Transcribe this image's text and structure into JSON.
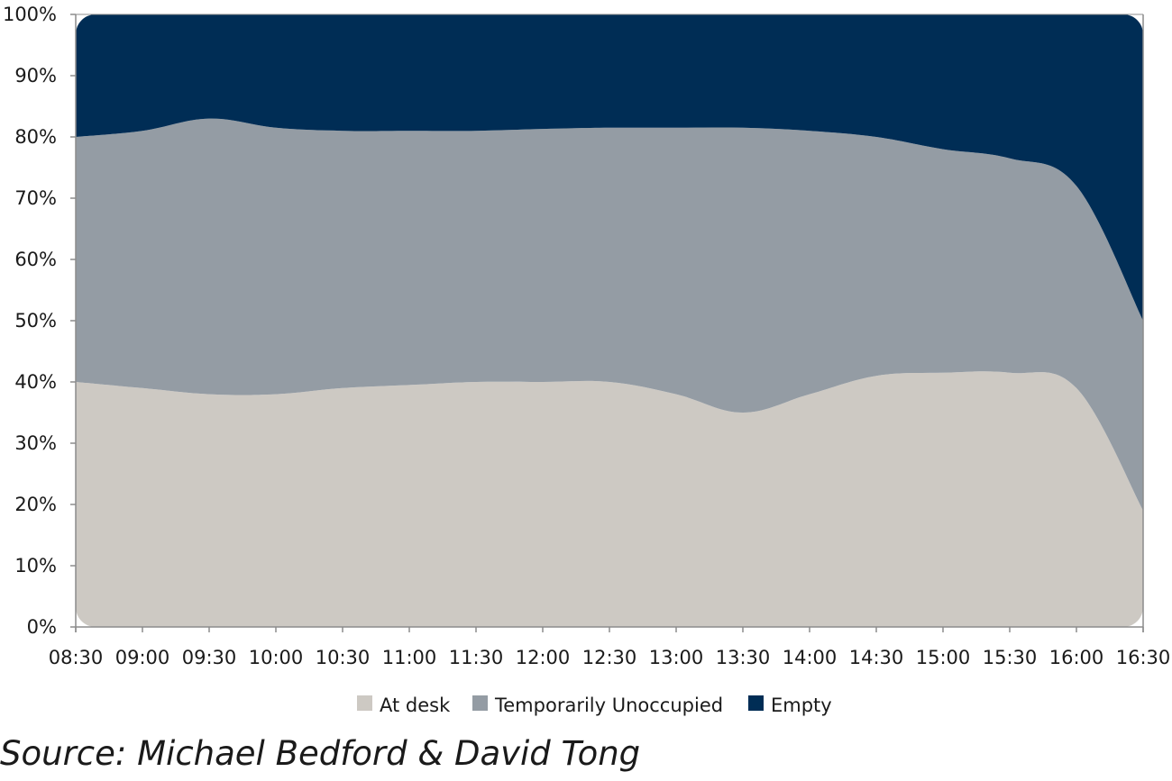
{
  "chart_data": {
    "type": "area",
    "stacked": true,
    "categories": [
      "08:30",
      "09:00",
      "09:30",
      "10:00",
      "10:30",
      "11:00",
      "11:30",
      "12:00",
      "12:30",
      "13:00",
      "13:30",
      "14:00",
      "14:30",
      "15:00",
      "15:30",
      "16:00",
      "16:30"
    ],
    "ylim": [
      0,
      100
    ],
    "yticks": [
      "0%",
      "10%",
      "20%",
      "30%",
      "40%",
      "50%",
      "60%",
      "70%",
      "80%",
      "90%",
      "100%"
    ],
    "grid": false,
    "legend_position": "bottom",
    "series": [
      {
        "name": "At desk",
        "color": "#cdc9c3",
        "values": [
          40,
          39,
          38,
          38,
          39,
          39.5,
          40,
          40,
          40,
          38,
          35,
          38,
          41,
          41.5,
          41.5,
          39,
          19
        ]
      },
      {
        "name": "Temporarily Unoccupied",
        "color": "#949ca4",
        "values": [
          40,
          42,
          45,
          43.5,
          42,
          41.5,
          41,
          41.3,
          41.5,
          43.5,
          46.5,
          43,
          39,
          36.5,
          35,
          33,
          31
        ]
      },
      {
        "name": "Empty",
        "color": "#002d55",
        "values": [
          20,
          19,
          17,
          18.5,
          19,
          19,
          19,
          18.7,
          18.5,
          18.5,
          18.5,
          19,
          20,
          22,
          23.5,
          28,
          50
        ]
      }
    ]
  },
  "source": "Source: Michael Bedford & David Tong"
}
